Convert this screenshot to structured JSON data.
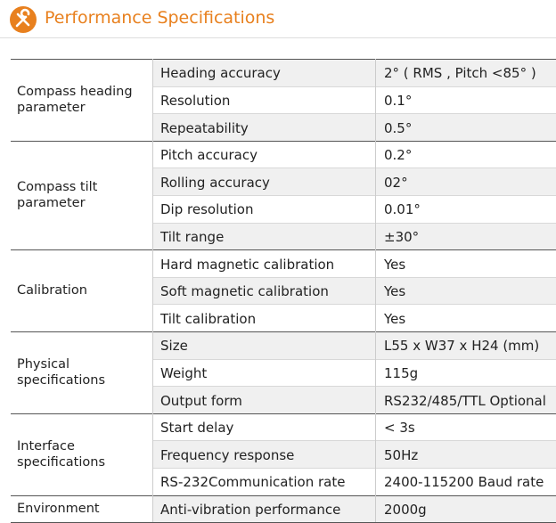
{
  "header": {
    "title": "Performance Specifications"
  },
  "table": {
    "groups": [
      {
        "label": "Compass heading parameter",
        "rows": [
          [
            "Heading accuracy",
            "2° ( RMS , Pitch <85° )"
          ],
          [
            "Resolution",
            "0.1°"
          ],
          [
            "Repeatability",
            "0.5°"
          ]
        ]
      },
      {
        "label": "Compass tilt parameter",
        "rows": [
          [
            "Pitch accuracy",
            "0.2°"
          ],
          [
            "Rolling accuracy",
            "02°"
          ],
          [
            "Dip resolution",
            "0.01°"
          ],
          [
            "Tilt range",
            "±30°"
          ]
        ]
      },
      {
        "label": "Calibration",
        "rows": [
          [
            "Hard magnetic calibration",
            "Yes"
          ],
          [
            "Soft magnetic calibration",
            "Yes"
          ],
          [
            "Tilt calibration",
            "Yes"
          ]
        ]
      },
      {
        "label": "Physical specifications",
        "rows": [
          [
            "Size",
            "L55 x W37 x H24 (mm)"
          ],
          [
            "Weight",
            "115g"
          ],
          [
            "Output form",
            "RS232/485/TTL Optional"
          ]
        ]
      },
      {
        "label": "Interface specifications",
        "rows": [
          [
            "Start delay",
            "< 3s"
          ],
          [
            "Frequency response",
            "50Hz"
          ],
          [
            "RS-232Communication rate",
            "2400-115200 Baud rate"
          ]
        ]
      },
      {
        "label": "Environment",
        "rows": [
          [
            "Anti-vibration performance",
            "2000g"
          ]
        ]
      }
    ]
  }
}
